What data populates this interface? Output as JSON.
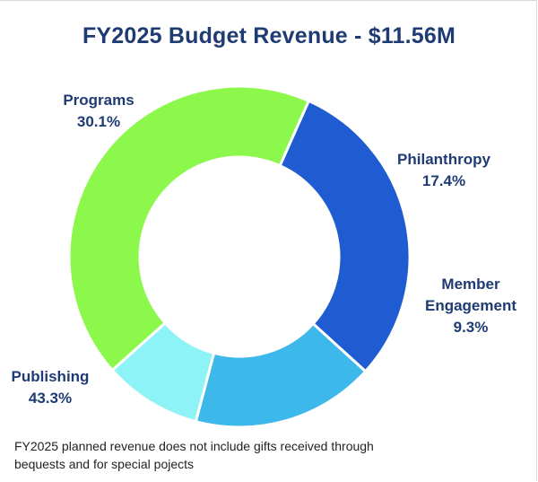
{
  "chart_data": {
    "type": "pie",
    "title": "FY2025 Budget Revenue - $11.56M",
    "donut": true,
    "slices": [
      {
        "name": "Programs",
        "value": 30.1,
        "label": "30.1%",
        "color": "#1f5bd1"
      },
      {
        "name": "Philanthropy",
        "value": 17.4,
        "label": "17.4%",
        "color": "#3db8ea"
      },
      {
        "name": "Member Engagement",
        "name_lines": [
          "Member",
          "Engagement"
        ],
        "value": 9.3,
        "label": "9.3%",
        "color": "#8ef3f7"
      },
      {
        "name": "Publishing",
        "value": 43.3,
        "label": "43.3%",
        "color": "#8cf84c"
      }
    ]
  },
  "footnote": {
    "line1": "FY2025 planned revenue does not include gifts received through",
    "line2": "bequests and for special pojects"
  }
}
